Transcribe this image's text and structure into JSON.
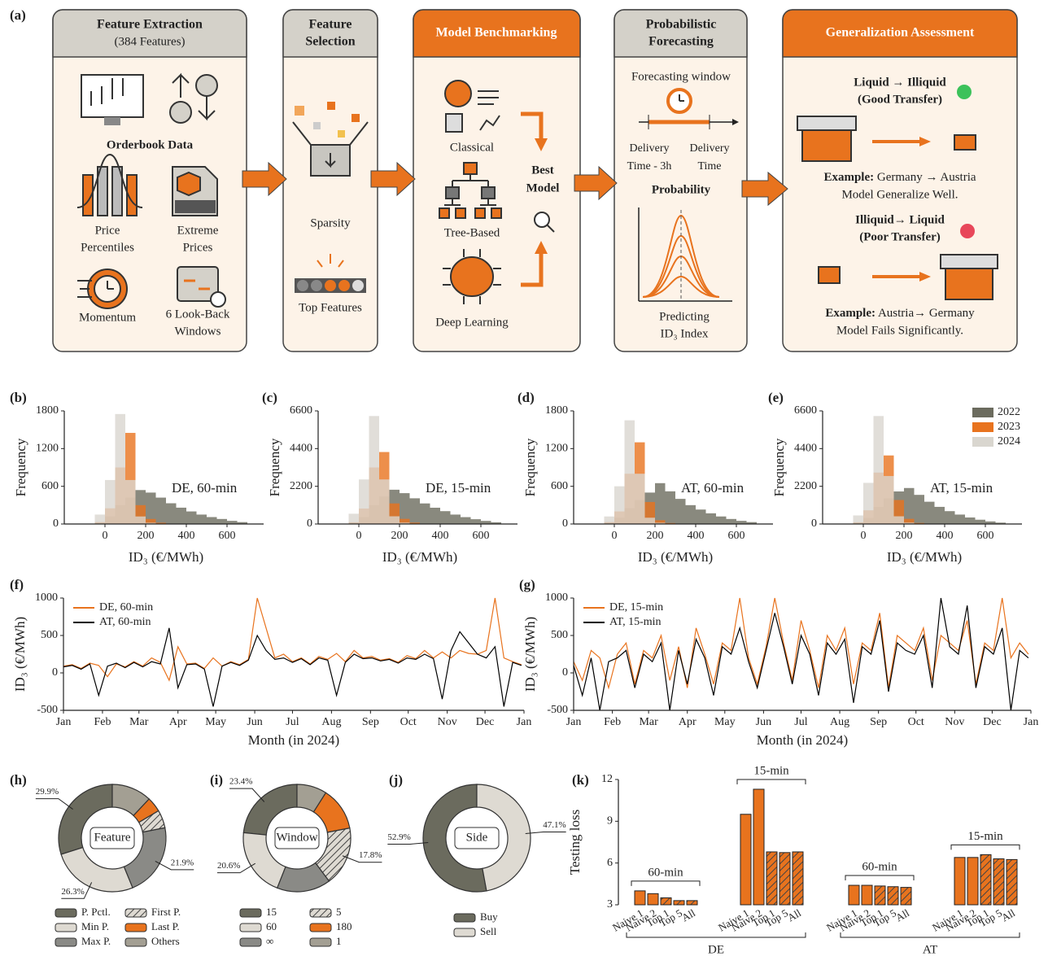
{
  "panel_labels": [
    "(a)",
    "(b)",
    "(c)",
    "(d)",
    "(e)",
    "(f)",
    "(g)",
    "(h)",
    "(i)",
    "(j)",
    "(k)"
  ],
  "diagram": {
    "stages": [
      {
        "lines": [
          "Feature Extraction",
          "(384 Features)",
          "Orderbook Data",
          "Price",
          "Percentiles",
          "Extreme",
          "Prices",
          "Momentum",
          "6 Look-Back",
          "Windows"
        ]
      },
      {
        "lines": [
          "Feature",
          "Selection",
          "Sparsity",
          "Top Features"
        ]
      },
      {
        "lines": [
          "Model Benchmarking",
          "Classical",
          "Tree-Based",
          "Deep Learning",
          "Best",
          "Model"
        ]
      },
      {
        "lines": [
          "Probabilistic",
          "Forecasting",
          "Forecasting window",
          "Delivery",
          "Time - 3h",
          "Delivery",
          "Time",
          "Probability",
          "Predicting",
          "ID₃ Index"
        ]
      },
      {
        "lines": [
          "Generalization Assessment",
          "Liquid → Illiquid",
          "(Good Transfer)",
          "Example:",
          "Germany → Austria",
          "Model Generalize Well.",
          "Illiquid→ Liquid",
          "(Poor Transfer)",
          "Example:",
          "Austria→ Germany",
          "Model Fails Significantly."
        ]
      }
    ]
  },
  "chart_data": [
    {
      "type": "histogram",
      "annotation": "DE, 60-min",
      "x_label": "ID₃ (€/MWh)",
      "y_label": "Frequency",
      "bins": [
        -50,
        0,
        50,
        100,
        150,
        200,
        250,
        300,
        350,
        400,
        450,
        500,
        550,
        600,
        650,
        700
      ],
      "xlim": [
        -200,
        780
      ],
      "xticks": [
        0,
        200,
        400,
        600
      ],
      "ylim": [
        0,
        1800
      ],
      "yticks": [
        0,
        600,
        1200,
        1800
      ],
      "series": [
        {
          "name": "2022",
          "color": "#6b6b5e",
          "values": [
            20,
            120,
            300,
            420,
            540,
            500,
            420,
            330,
            260,
            200,
            150,
            110,
            80,
            50,
            30
          ]
        },
        {
          "name": "2023",
          "color": "#e8731e",
          "values": [
            30,
            250,
            900,
            1450,
            300,
            80,
            20,
            5,
            0,
            0,
            0,
            0,
            0,
            0,
            0
          ]
        },
        {
          "name": "2024",
          "color": "#d9d6cf",
          "values": [
            150,
            700,
            1750,
            700,
            120,
            20,
            5,
            0,
            0,
            0,
            0,
            0,
            0,
            0,
            0
          ]
        }
      ]
    },
    {
      "type": "histogram",
      "annotation": "DE, 15-min",
      "x_label": "ID₃ (€/MWh)",
      "y_label": "Frequency",
      "bins": [
        -50,
        0,
        50,
        100,
        150,
        200,
        250,
        300,
        350,
        400,
        450,
        500,
        550,
        600,
        650,
        700
      ],
      "xlim": [
        -200,
        780
      ],
      "xticks": [
        0,
        200,
        400,
        600
      ],
      "ylim": [
        0,
        6600
      ],
      "yticks": [
        0,
        2200,
        4400,
        6600
      ],
      "series": [
        {
          "name": "2022",
          "color": "#6b6b5e",
          "values": [
            80,
            400,
            1100,
            1600,
            2000,
            1800,
            1500,
            1200,
            950,
            750,
            550,
            400,
            280,
            180,
            100
          ]
        },
        {
          "name": "2023",
          "color": "#e8731e",
          "values": [
            100,
            900,
            3300,
            4200,
            1200,
            300,
            80,
            20,
            0,
            0,
            0,
            0,
            0,
            0,
            0
          ]
        },
        {
          "name": "2024",
          "color": "#d9d6cf",
          "values": [
            600,
            2600,
            6300,
            2600,
            450,
            80,
            20,
            0,
            0,
            0,
            0,
            0,
            0,
            0,
            0
          ]
        }
      ]
    },
    {
      "type": "histogram",
      "annotation": "AT, 60-min",
      "x_label": "ID₃ (€/MWh)",
      "y_label": "Frequency",
      "bins": [
        -50,
        0,
        50,
        100,
        150,
        200,
        250,
        300,
        350,
        400,
        450,
        500,
        550,
        600,
        650,
        700
      ],
      "xlim": [
        -200,
        780
      ],
      "xticks": [
        0,
        200,
        400,
        600
      ],
      "ylim": [
        0,
        1800
      ],
      "yticks": [
        0,
        600,
        1200,
        1800
      ],
      "series": [
        {
          "name": "2022",
          "color": "#6b6b5e",
          "values": [
            20,
            100,
            250,
            380,
            500,
            650,
            520,
            400,
            300,
            230,
            170,
            120,
            80,
            50,
            30
          ]
        },
        {
          "name": "2023",
          "color": "#e8731e",
          "values": [
            30,
            200,
            800,
            1300,
            350,
            60,
            15,
            5,
            0,
            0,
            0,
            0,
            0,
            0,
            0
          ]
        },
        {
          "name": "2024",
          "color": "#d9d6cf",
          "values": [
            120,
            600,
            1650,
            800,
            100,
            20,
            5,
            0,
            0,
            0,
            0,
            0,
            0,
            0,
            0
          ]
        }
      ]
    },
    {
      "type": "histogram",
      "annotation": "AT, 15-min",
      "x_label": "ID₃ (€/MWh)",
      "y_label": "Frequency",
      "legend": "upper right",
      "bins": [
        -50,
        0,
        50,
        100,
        150,
        200,
        250,
        300,
        350,
        400,
        450,
        500,
        550,
        600,
        650,
        700
      ],
      "xlim": [
        -200,
        780
      ],
      "xticks": [
        0,
        200,
        400,
        600
      ],
      "ylim": [
        0,
        6600
      ],
      "yticks": [
        0,
        2200,
        4400,
        6600
      ],
      "series": [
        {
          "name": "2022",
          "color": "#6b6b5e",
          "values": [
            80,
            350,
            1000,
            1500,
            1900,
            2100,
            1700,
            1300,
            1000,
            750,
            550,
            380,
            250,
            150,
            80
          ]
        },
        {
          "name": "2023",
          "color": "#e8731e",
          "values": [
            100,
            800,
            3000,
            4000,
            1400,
            300,
            60,
            10,
            0,
            0,
            0,
            0,
            0,
            0,
            0
          ]
        },
        {
          "name": "2024",
          "color": "#d9d6cf",
          "values": [
            500,
            2400,
            6300,
            2800,
            450,
            80,
            20,
            0,
            0,
            0,
            0,
            0,
            0,
            0,
            0
          ]
        }
      ]
    },
    {
      "type": "line",
      "x_label": "Month (in 2024)",
      "y_label": "ID₃ (€/MWh)",
      "legend": "upper left",
      "x": [
        0,
        7,
        14,
        21,
        28,
        35,
        42,
        49,
        56,
        63,
        70,
        77,
        84,
        91,
        98,
        105,
        112,
        119,
        126,
        133,
        140,
        147,
        154,
        161,
        168,
        175,
        182,
        189,
        196,
        203,
        210,
        217,
        224,
        231,
        238,
        245,
        252,
        259,
        266,
        273,
        280,
        287,
        294,
        301,
        308,
        315,
        322,
        329,
        336,
        343,
        350,
        357,
        364
      ],
      "xlim": [
        0,
        366
      ],
      "xticks": [
        {
          "value": 0,
          "label": "Jan"
        },
        {
          "value": 31,
          "label": "Feb"
        },
        {
          "value": 60,
          "label": "Mar"
        },
        {
          "value": 91,
          "label": "Apr"
        },
        {
          "value": 121,
          "label": "May"
        },
        {
          "value": 152,
          "label": "Jun"
        },
        {
          "value": 182,
          "label": "Jul"
        },
        {
          "value": 213,
          "label": "Aug"
        },
        {
          "value": 244,
          "label": "Sep"
        },
        {
          "value": 274,
          "label": "Oct"
        },
        {
          "value": 305,
          "label": "Nov"
        },
        {
          "value": 335,
          "label": "Dec"
        },
        {
          "value": 366,
          "label": "Jan"
        }
      ],
      "ylim": [
        -500,
        1000
      ],
      "yticks": [
        -500,
        0,
        500,
        1000
      ],
      "series": [
        {
          "name": "DE, 60-min",
          "color": "#e8731e",
          "values": [
            90,
            110,
            60,
            130,
            100,
            -50,
            120,
            80,
            150,
            90,
            200,
            140,
            -100,
            350,
            120,
            130,
            60,
            200,
            90,
            150,
            110,
            180,
            1000,
            600,
            200,
            250,
            150,
            200,
            120,
            220,
            180,
            260,
            150,
            300,
            200,
            220,
            170,
            190,
            140,
            230,
            190,
            300,
            200,
            280,
            200,
            300,
            260,
            250,
            300,
            1000,
            200,
            150,
            110
          ]
        },
        {
          "name": "AT, 60-min",
          "color": "#000000",
          "values": [
            80,
            100,
            50,
            120,
            -300,
            90,
            130,
            70,
            140,
            80,
            150,
            120,
            600,
            -200,
            110,
            120,
            50,
            -450,
            90,
            140,
            100,
            170,
            500,
            300,
            180,
            200,
            140,
            190,
            110,
            200,
            170,
            -300,
            140,
            250,
            190,
            200,
            160,
            180,
            130,
            200,
            180,
            250,
            190,
            -350,
            300,
            550,
            400,
            250,
            200,
            350,
            -450,
            140,
            100
          ]
        }
      ]
    },
    {
      "type": "line",
      "x_label": "Month (in 2024)",
      "y_label": "ID₃ (€/MWh)",
      "legend": "upper left",
      "x": [
        0,
        7,
        14,
        21,
        28,
        35,
        42,
        49,
        56,
        63,
        70,
        77,
        84,
        91,
        98,
        105,
        112,
        119,
        126,
        133,
        140,
        147,
        154,
        161,
        168,
        175,
        182,
        189,
        196,
        203,
        210,
        217,
        224,
        231,
        238,
        245,
        252,
        259,
        266,
        273,
        280,
        287,
        294,
        301,
        308,
        315,
        322,
        329,
        336,
        343,
        350,
        357,
        364
      ],
      "xlim": [
        0,
        366
      ],
      "xticks": [
        {
          "value": 0,
          "label": "Jan"
        },
        {
          "value": 31,
          "label": "Feb"
        },
        {
          "value": 60,
          "label": "Mar"
        },
        {
          "value": 91,
          "label": "Apr"
        },
        {
          "value": 121,
          "label": "May"
        },
        {
          "value": 152,
          "label": "Jun"
        },
        {
          "value": 182,
          "label": "Jul"
        },
        {
          "value": 213,
          "label": "Aug"
        },
        {
          "value": 244,
          "label": "Sep"
        },
        {
          "value": 274,
          "label": "Oct"
        },
        {
          "value": 305,
          "label": "Nov"
        },
        {
          "value": 335,
          "label": "Dec"
        },
        {
          "value": 366,
          "label": "Jan"
        }
      ],
      "ylim": [
        -500,
        1000
      ],
      "yticks": [
        -500,
        0,
        500,
        1000
      ],
      "series": [
        {
          "name": "DE, 15-min",
          "color": "#e8731e",
          "values": [
            150,
            -100,
            300,
            200,
            -200,
            250,
            400,
            -150,
            300,
            200,
            500,
            -100,
            350,
            -200,
            600,
            250,
            -150,
            400,
            300,
            1000,
            200,
            -150,
            350,
            1000,
            400,
            -100,
            700,
            300,
            -200,
            500,
            300,
            600,
            -150,
            400,
            300,
            800,
            -200,
            500,
            400,
            300,
            600,
            -100,
            500,
            400,
            300,
            700,
            -150,
            400,
            300,
            1000,
            200,
            400,
            250
          ]
        },
        {
          "name": "AT, 15-min",
          "color": "#000000",
          "values": [
            100,
            -300,
            200,
            -500,
            150,
            200,
            300,
            -200,
            250,
            150,
            400,
            -500,
            300,
            -150,
            450,
            200,
            -300,
            350,
            250,
            600,
            150,
            -200,
            300,
            800,
            350,
            -150,
            500,
            250,
            -300,
            400,
            250,
            450,
            -400,
            350,
            250,
            700,
            -250,
            400,
            300,
            250,
            500,
            -200,
            1000,
            350,
            250,
            900,
            -200,
            350,
            250,
            600,
            -500,
            300,
            200
          ]
        }
      ]
    },
    {
      "type": "pie",
      "center_label": "Feature",
      "direction": "counterclockwise",
      "categories": [
        "P. Pctl.",
        "Min P.",
        "Max P.",
        "First P.",
        "Last P.",
        "Others"
      ],
      "values": [
        29.9,
        26.3,
        21.9,
        5.4,
        4.5,
        12.0
      ],
      "value_labels": [
        "29.9%",
        "26.3%",
        "21.9%",
        null,
        null,
        null
      ],
      "colors": [
        "#6b6b5e",
        "#dedad2",
        "#8a8a86",
        "#dedad2",
        "#e8731e",
        "#a39f93"
      ],
      "hatched": [
        false,
        false,
        false,
        true,
        false,
        false
      ]
    },
    {
      "type": "pie",
      "center_label": "Window",
      "direction": "counterclockwise",
      "categories": [
        "15",
        "60",
        "∞",
        "5",
        "180",
        "1"
      ],
      "values": [
        23.4,
        20.6,
        16.2,
        17.8,
        13.0,
        9.0
      ],
      "value_labels": [
        "23.4%",
        "20.6%",
        null,
        "17.8%",
        null,
        null
      ],
      "colors": [
        "#6b6b5e",
        "#dedad2",
        "#8a8a86",
        "#dedad2",
        "#e8731e",
        "#a39f93"
      ],
      "hatched": [
        false,
        false,
        false,
        true,
        false,
        false
      ]
    },
    {
      "type": "pie",
      "center_label": "Side",
      "direction": "counterclockwise",
      "categories": [
        "Buy",
        "Sell"
      ],
      "values": [
        52.9,
        47.1
      ],
      "value_labels": [
        "52.9%",
        "47.1%"
      ],
      "colors": [
        "#6b6b5e",
        "#dedad2"
      ],
      "hatched": [
        false,
        false
      ]
    },
    {
      "type": "bar",
      "y_label": "Testing loss",
      "color": "#e8731e",
      "categories": [
        "Naive 1",
        "Naive 2",
        "Top 1",
        "Top 5",
        "All"
      ],
      "hatched": [
        false,
        false,
        true,
        true,
        true
      ],
      "markets": [
        "DE",
        "AT"
      ],
      "ylim": [
        3,
        12
      ],
      "yticks": [
        3,
        6,
        9,
        12
      ],
      "series": [
        {
          "name": "60-min",
          "values": [
            4.0,
            3.8,
            3.5,
            3.3,
            3.3
          ]
        },
        {
          "name": "15-min",
          "values": [
            9.5,
            11.3,
            6.8,
            6.75,
            6.8
          ]
        },
        {
          "name": "60-min",
          "values": [
            4.4,
            4.4,
            4.35,
            4.3,
            4.25
          ]
        },
        {
          "name": "15-min",
          "values": [
            6.4,
            6.4,
            6.6,
            6.3,
            6.25
          ]
        }
      ]
    }
  ]
}
